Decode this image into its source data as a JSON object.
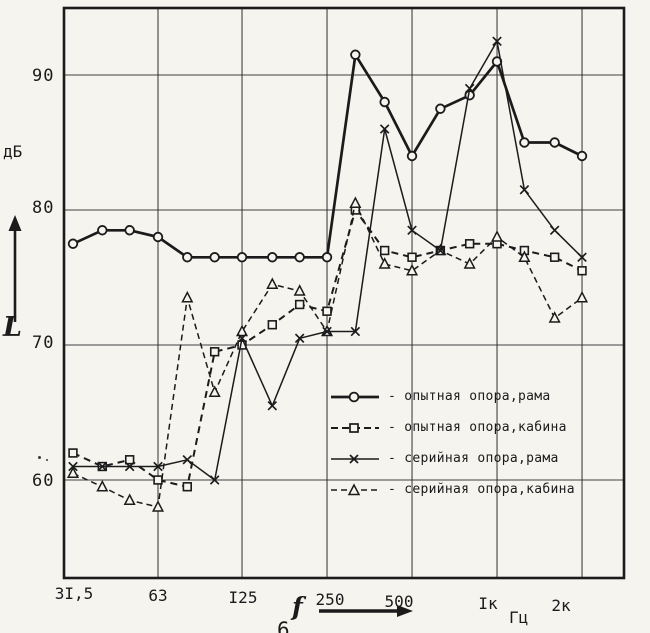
{
  "y_axis": {
    "unit": "дБ",
    "symbol": "L",
    "ticks": [
      "90",
      "80",
      "70",
      "60"
    ]
  },
  "x_axis": {
    "symbol": "f",
    "unit": "Гц",
    "ticks": [
      "3I,5",
      "63",
      "I25",
      "250",
      "500",
      "Iк",
      "2к"
    ]
  },
  "fragment": {
    "text": "6"
  },
  "legend": [
    {
      "marker": "circle",
      "line": "solid",
      "label": "- опытная опора,рама"
    },
    {
      "marker": "square",
      "line": "dashed",
      "label": "- опытная опора,кабина"
    },
    {
      "marker": "x",
      "line": "solid",
      "label": "- серийная опора,рама"
    },
    {
      "marker": "triangle",
      "line": "dashed",
      "label": "- серийная опора,кабина"
    }
  ],
  "colors": {
    "ink": "#1b1b1b",
    "paper": "#f5f4ef"
  },
  "chart_data": {
    "type": "line",
    "title": "",
    "xlabel": "f, Гц",
    "ylabel": "L, дБ",
    "x_scale": "log-octave",
    "x": [
      31.5,
      40,
      50,
      63,
      80,
      100,
      125,
      160,
      200,
      250,
      315,
      400,
      500,
      630,
      800,
      1000,
      1250,
      1600,
      2000
    ],
    "grid_x": [
      63,
      125,
      250,
      500,
      1000,
      2000
    ],
    "grid_y": [
      90,
      80,
      70,
      60
    ],
    "ylim": [
      52.5,
      95
    ],
    "xlim": [
      31.5,
      2800
    ],
    "legend_position": "inside lower right",
    "series": [
      {
        "name": "опытная опора, рама",
        "marker": "circle",
        "line": "solid",
        "values": [
          77.5,
          78.5,
          78.5,
          78,
          76.5,
          76.5,
          76.5,
          76.5,
          76.5,
          76.5,
          91.5,
          88,
          84,
          87.5,
          88.5,
          91,
          85,
          85,
          84
        ]
      },
      {
        "name": "опытная опора, кабина",
        "marker": "square",
        "line": "dashed",
        "values": [
          62,
          61,
          61.5,
          60,
          59.5,
          69.5,
          70,
          71.5,
          73,
          72.5,
          80,
          77,
          76.5,
          77,
          77.5,
          77.5,
          77,
          76.5,
          75.5
        ]
      },
      {
        "name": "серийная опора, рама",
        "marker": "x",
        "line": "solid",
        "values": [
          61,
          61,
          61,
          61,
          61.5,
          60,
          70.5,
          65.5,
          70.5,
          71,
          71,
          86,
          78.5,
          77,
          89,
          92.5,
          81.5,
          78.5,
          76.5
        ]
      },
      {
        "name": "серийная опора, кабина",
        "marker": "triangle",
        "line": "dashed",
        "values": [
          60.5,
          59.5,
          58.5,
          58,
          73.5,
          66.5,
          71,
          74.5,
          74,
          71,
          80.5,
          76,
          75.5,
          77,
          76,
          78,
          76.5,
          72,
          73.5
        ]
      }
    ]
  }
}
